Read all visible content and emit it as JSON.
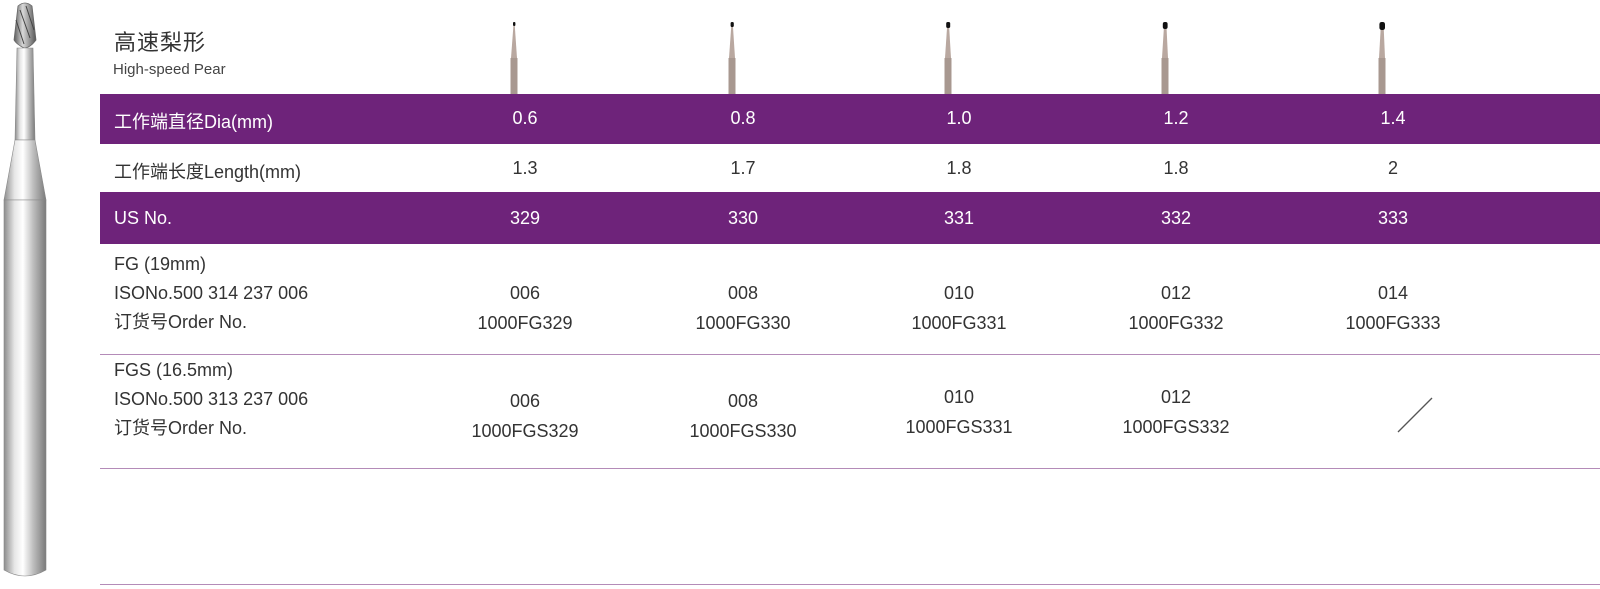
{
  "title": {
    "zh": "高速梨形",
    "en": "High-speed Pear"
  },
  "colors": {
    "accent": "#6e237a",
    "divider": "#b48bb8"
  },
  "thumbnails": [
    "pear-bur-0.6",
    "pear-bur-0.8",
    "pear-bur-1.0",
    "pear-bur-1.2",
    "pear-bur-1.4"
  ],
  "table": {
    "diameter": {
      "label": "工作端直径Dia(mm)",
      "values": [
        "0.6",
        "0.8",
        "1.0",
        "1.2",
        "1.4"
      ]
    },
    "length": {
      "label": "工作端长度Length(mm)",
      "values": [
        "1.3",
        "1.7",
        "1.8",
        "1.8",
        "2"
      ]
    },
    "us_no": {
      "label": "US No.",
      "values": [
        "329",
        "330",
        "331",
        "332",
        "333"
      ]
    },
    "fg": {
      "label_lines": [
        "FG (19mm)",
        "ISONo.500 314 237 006",
        "订货号Order No."
      ],
      "cells": [
        {
          "iso": "006",
          "order": "1000FG329"
        },
        {
          "iso": "008",
          "order": "1000FG330"
        },
        {
          "iso": "010",
          "order": "1000FG331"
        },
        {
          "iso": "012",
          "order": "1000FG332"
        },
        {
          "iso": "014",
          "order": "1000FG333"
        }
      ]
    },
    "fgs": {
      "label_lines": [
        "FGS (16.5mm)",
        "ISONo.500 313 237 006",
        "订货号Order No."
      ],
      "cells": [
        {
          "iso": "006",
          "order": "1000FGS329"
        },
        {
          "iso": "008",
          "order": "1000FGS330"
        },
        {
          "iso": "010",
          "order": "1000FGS331"
        },
        {
          "iso": "012",
          "order": "1000FGS332"
        }
      ],
      "unavailable_icon": "diagonal-slash-icon"
    }
  }
}
